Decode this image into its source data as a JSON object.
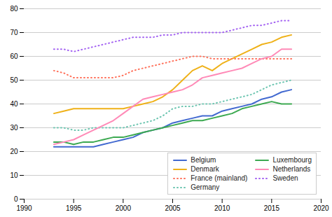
{
  "chart_data": {
    "type": "line",
    "x": [
      1993,
      1994,
      1995,
      1996,
      1997,
      1998,
      1999,
      2000,
      2001,
      2002,
      2003,
      2004,
      2005,
      2006,
      2007,
      2008,
      2009,
      2010,
      2011,
      2012,
      2013,
      2014,
      2015,
      2016,
      2017
    ],
    "xlim": [
      1990,
      2020
    ],
    "xticks": [
      1990,
      1995,
      2000,
      2005,
      2010,
      2015,
      2020
    ],
    "ylim": [
      0,
      80
    ],
    "yticks": [
      0,
      10,
      20,
      30,
      40,
      50,
      60,
      70,
      80
    ],
    "grid": true,
    "legend": "lower right",
    "series": [
      {
        "name": "Belgium",
        "line_style": "solid",
        "values": [
          22,
          22,
          22,
          22,
          22,
          23,
          24,
          25,
          26,
          28,
          29,
          30,
          32,
          33,
          34,
          35,
          35,
          37,
          38,
          39,
          40,
          42,
          43,
          45,
          46
        ]
      },
      {
        "name": "Denmark",
        "line_style": "solid",
        "values": [
          36,
          37,
          38,
          38,
          38,
          38,
          38,
          38,
          39,
          40,
          41,
          43,
          46,
          50,
          54,
          56,
          54,
          57,
          59,
          61,
          63,
          65,
          66,
          68,
          69
        ]
      },
      {
        "name": "France (mainland)",
        "line_style": "dotted",
        "values": [
          54,
          53,
          51,
          51,
          51,
          51,
          51,
          52,
          54,
          55,
          56,
          57,
          58,
          59,
          60,
          60,
          59,
          59,
          59,
          59,
          59,
          59,
          59,
          59,
          59
        ]
      },
      {
        "name": "Germany",
        "line_style": "dotted",
        "values": [
          30,
          30,
          29,
          29,
          30,
          30,
          30,
          30,
          31,
          32,
          33,
          35,
          38,
          39,
          39,
          40,
          40,
          41,
          42,
          43,
          44,
          46,
          48,
          49,
          50
        ]
      },
      {
        "name": "Luxembourg",
        "line_style": "solid",
        "values": [
          24,
          24,
          23,
          24,
          24,
          25,
          26,
          26,
          27,
          28,
          29,
          30,
          31,
          32,
          33,
          33,
          34,
          35,
          36,
          38,
          39,
          40,
          41,
          40,
          40
        ]
      },
      {
        "name": "Netherlands",
        "line_style": "solid",
        "values": [
          23,
          24,
          25,
          27,
          29,
          31,
          33,
          36,
          39,
          42,
          43,
          44,
          45,
          46,
          48,
          51,
          52,
          53,
          54,
          55,
          57,
          59,
          60,
          63,
          63
        ]
      },
      {
        "name": "Sweden",
        "line_style": "dotted",
        "values": [
          63,
          63,
          62,
          63,
          64,
          65,
          66,
          67,
          68,
          68,
          68,
          69,
          69,
          70,
          70,
          70,
          70,
          70,
          71,
          72,
          73,
          73,
          74,
          75,
          75
        ]
      }
    ]
  }
}
